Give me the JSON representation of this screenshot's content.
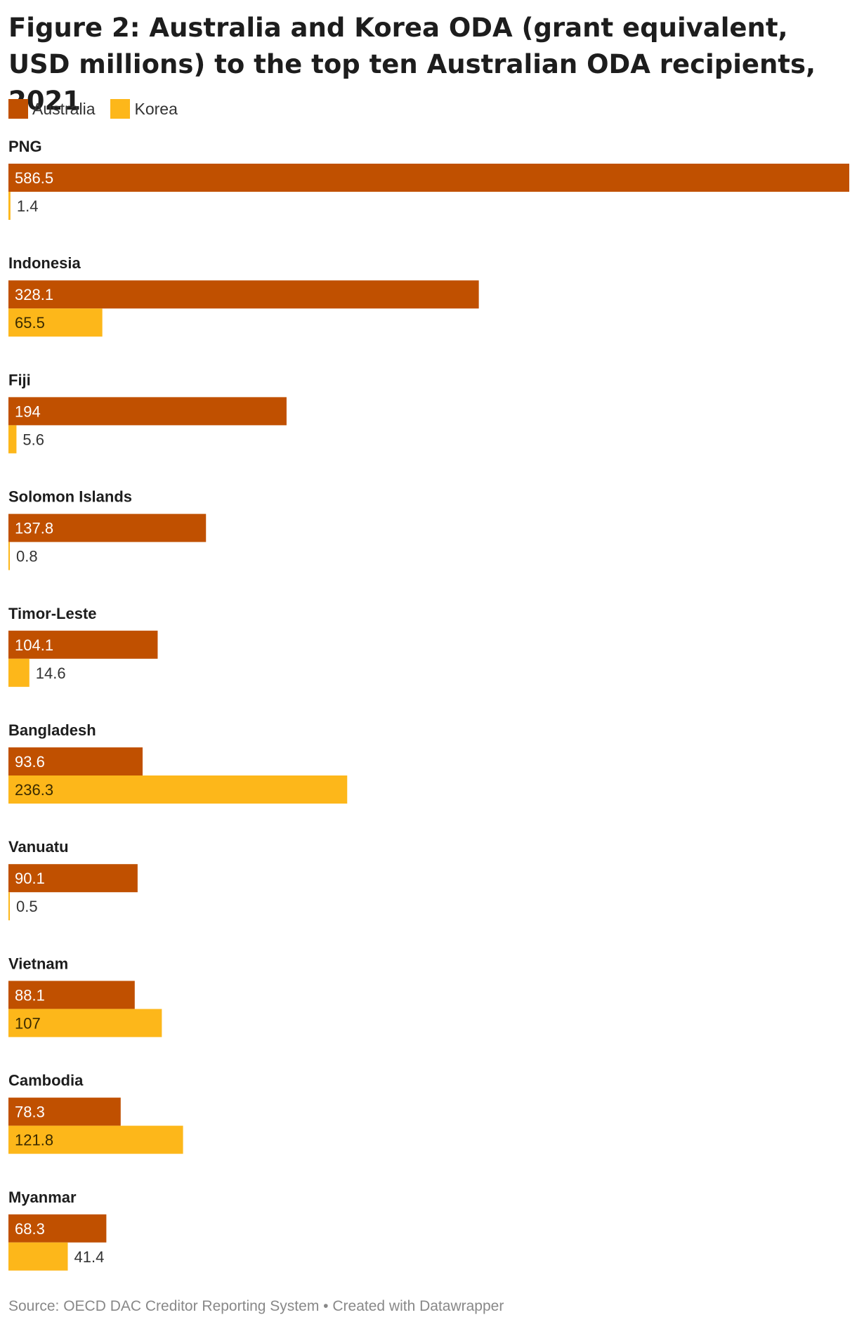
{
  "title": "Figure 2: Australia and Korea ODA (grant equivalent, USD millions) to the top ten Australian ODA recipients, 2021",
  "legend": [
    {
      "label": "Australia",
      "color": "#c05000"
    },
    {
      "label": "Korea",
      "color": "#fdb71a"
    }
  ],
  "source": "Source: OECD DAC Creditor Reporting System",
  "credit": "Created with Datawrapper",
  "separator": "•",
  "chart_data": {
    "type": "bar",
    "orientation": "horizontal",
    "grouped": true,
    "categories": [
      "PNG",
      "Indonesia",
      "Fiji",
      "Solomon Islands",
      "Timor-Leste",
      "Bangladesh",
      "Vanuatu",
      "Vietnam",
      "Cambodia",
      "Myanmar"
    ],
    "series": [
      {
        "name": "Australia",
        "color": "#c05000",
        "values": [
          586.5,
          328.1,
          194,
          137.8,
          104.1,
          93.6,
          90.1,
          88.1,
          78.3,
          68.3
        ]
      },
      {
        "name": "Korea",
        "color": "#fdb71a",
        "values": [
          1.4,
          65.5,
          5.6,
          0.8,
          14.6,
          236.3,
          0.5,
          107,
          121.8,
          41.4
        ]
      }
    ],
    "xlim": [
      0,
      586.5
    ],
    "grid": false,
    "legend_position": "top-left",
    "data_labels": true
  }
}
